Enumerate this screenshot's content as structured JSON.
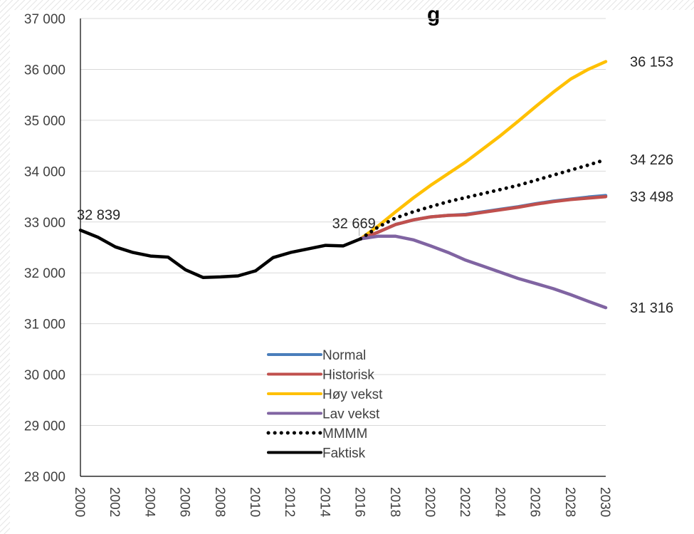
{
  "chart_data": {
    "type": "line",
    "title": "g",
    "xlabel": "",
    "ylabel": "",
    "xlim": [
      2000,
      2030
    ],
    "ylim": [
      28000,
      37000
    ],
    "x_ticks": [
      "2000",
      "2002",
      "2004",
      "2006",
      "2008",
      "2010",
      "2012",
      "2014",
      "2016",
      "2018",
      "2020",
      "2022",
      "2024",
      "2026",
      "2028",
      "2030"
    ],
    "y_ticks": [
      "28 000",
      "29 000",
      "30 000",
      "31 000",
      "32 000",
      "33 000",
      "34 000",
      "35 000",
      "36 000",
      "37 000"
    ],
    "grid": "horizontal",
    "legend_position": "bottom-center",
    "series": [
      {
        "name": "Normal",
        "color": "#4a7ebb",
        "style": "solid",
        "x": [
          2016,
          2017,
          2018,
          2019,
          2020,
          2021,
          2022,
          2023,
          2024,
          2025,
          2026,
          2027,
          2028,
          2029,
          2030
        ],
        "y": [
          32669,
          32800,
          32950,
          33040,
          33100,
          33130,
          33150,
          33200,
          33250,
          33300,
          33360,
          33410,
          33450,
          33490,
          33520
        ]
      },
      {
        "name": "Historisk",
        "color": "#c0504d",
        "style": "solid",
        "x": [
          2016,
          2017,
          2018,
          2019,
          2020,
          2021,
          2022,
          2023,
          2024,
          2025,
          2026,
          2027,
          2028,
          2029,
          2030
        ],
        "y": [
          32669,
          32800,
          32950,
          33040,
          33100,
          33130,
          33140,
          33190,
          33240,
          33290,
          33350,
          33400,
          33440,
          33470,
          33498
        ]
      },
      {
        "name": "Høy vekst",
        "color": "#ffc000",
        "style": "solid",
        "x": [
          2016,
          2017,
          2018,
          2019,
          2020,
          2021,
          2022,
          2023,
          2024,
          2025,
          2026,
          2027,
          2028,
          2029,
          2030
        ],
        "y": [
          32669,
          32920,
          33200,
          33470,
          33720,
          33950,
          34180,
          34440,
          34700,
          34980,
          35270,
          35550,
          35810,
          36000,
          36153
        ]
      },
      {
        "name": "Lav vekst",
        "color": "#8064a2",
        "style": "solid",
        "x": [
          2016,
          2017,
          2018,
          2019,
          2020,
          2021,
          2022,
          2023,
          2024,
          2025,
          2026,
          2027,
          2028,
          2029,
          2030
        ],
        "y": [
          32669,
          32720,
          32720,
          32650,
          32530,
          32400,
          32250,
          32130,
          32010,
          31890,
          31790,
          31690,
          31570,
          31440,
          31316
        ]
      },
      {
        "name": "MMMM",
        "color": "#000000",
        "style": "dotted",
        "x": [
          2016,
          2017,
          2018,
          2019,
          2020,
          2021,
          2022,
          2023,
          2024,
          2025,
          2026,
          2027,
          2028,
          2029,
          2030
        ],
        "y": [
          32669,
          32900,
          33080,
          33200,
          33300,
          33400,
          33480,
          33560,
          33640,
          33720,
          33820,
          33920,
          34020,
          34120,
          34226
        ]
      },
      {
        "name": "Faktisk",
        "color": "#000000",
        "style": "solid",
        "x": [
          2000,
          2001,
          2002,
          2003,
          2004,
          2005,
          2006,
          2007,
          2008,
          2009,
          2010,
          2011,
          2012,
          2013,
          2014,
          2015,
          2016
        ],
        "y": [
          32839,
          32700,
          32510,
          32400,
          32330,
          32310,
          32060,
          31910,
          31920,
          31940,
          32040,
          32300,
          32400,
          32470,
          32540,
          32530,
          32669
        ]
      }
    ],
    "annotations": [
      {
        "text": "32 839",
        "x": 2000,
        "y": 32839,
        "pos": "above"
      },
      {
        "text": "32 669",
        "x": 2016,
        "y": 32669,
        "pos": "above-left"
      },
      {
        "text": "36 153",
        "x": 2030,
        "y": 36153,
        "pos": "right"
      },
      {
        "text": "34 226",
        "x": 2030,
        "y": 34226,
        "pos": "right"
      },
      {
        "text": "33 498",
        "x": 2030,
        "y": 33498,
        "pos": "right"
      },
      {
        "text": "31 316",
        "x": 2030,
        "y": 31316,
        "pos": "right"
      }
    ]
  }
}
